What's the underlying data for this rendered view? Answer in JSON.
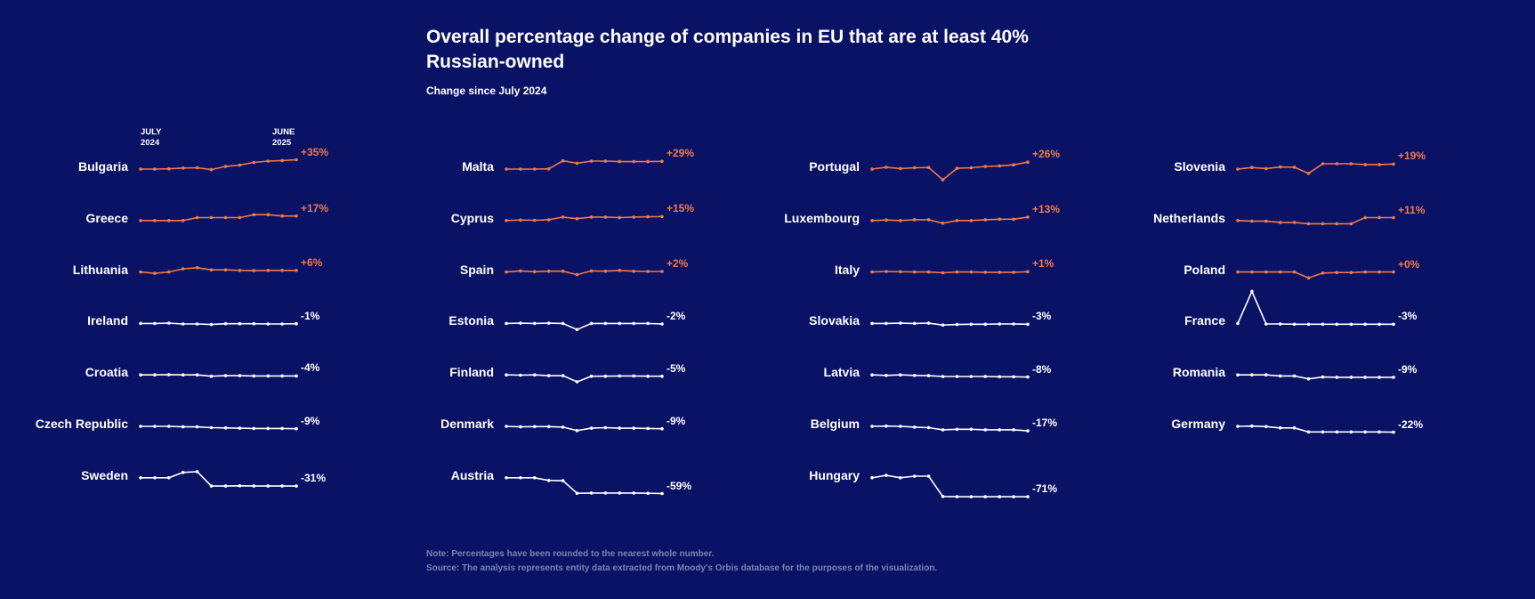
{
  "title": "Overall percentage change of companies in EU that are at least 40% Russian-owned",
  "subtitle": "Change since July 2024",
  "axis": {
    "start": "JULY\n2024",
    "end": "JUNE\n2025"
  },
  "notes": {
    "note": "Note: Percentages have been rounded to the nearest whole number.",
    "source": "Source: The analysis represents entity data extracted from Moody's Orbis database for the purposes of the visualization."
  },
  "colors": {
    "background": "#0a1266",
    "positive": "#f0794a",
    "negative": "#ffffff",
    "muted": "#7a82ad"
  },
  "chart_data": {
    "type": "line",
    "x": [
      "Jul 2024",
      "Aug 2024",
      "Sep 2024",
      "Oct 2024",
      "Nov 2024",
      "Dec 2024",
      "Jan 2025",
      "Feb 2025",
      "Mar 2025",
      "Apr 2025",
      "May 2025",
      "Jun 2025"
    ],
    "series": [
      {
        "name": "Bulgaria",
        "label": "+35%",
        "values": [
          100,
          100,
          101,
          104,
          105,
          98,
          110,
          115,
          125,
          130,
          132,
          135
        ]
      },
      {
        "name": "Greece",
        "label": "+17%",
        "values": [
          100,
          100,
          100,
          100,
          111,
          111,
          111,
          111,
          122,
          122,
          117,
          117
        ]
      },
      {
        "name": "Lithuania",
        "label": "+6%",
        "values": [
          100,
          95,
          100,
          112,
          116,
          108,
          108,
          106,
          105,
          106,
          106,
          106
        ]
      },
      {
        "name": "Ireland",
        "label": "-1%",
        "values": [
          100,
          100,
          101,
          98,
          98,
          96,
          99,
          99,
          99,
          98,
          98,
          99
        ]
      },
      {
        "name": "Croatia",
        "label": "-4%",
        "values": [
          100,
          100,
          101,
          100,
          100,
          95,
          97,
          97,
          96,
          96,
          96,
          96
        ]
      },
      {
        "name": "Czech Republic",
        "label": "-9%",
        "values": [
          100,
          100,
          100,
          98,
          98,
          95,
          94,
          93,
          92,
          92,
          92,
          91
        ]
      },
      {
        "name": "Sweden",
        "label": "-31%",
        "values": [
          100,
          100,
          100,
          120,
          123,
          69,
          69,
          70,
          69,
          69,
          69,
          69
        ]
      },
      {
        "name": "Malta",
        "label": "+29%",
        "values": [
          100,
          100,
          100,
          101,
          131,
          122,
          130,
          130,
          128,
          128,
          128,
          129
        ]
      },
      {
        "name": "Cyprus",
        "label": "+15%",
        "values": [
          100,
          102,
          101,
          103,
          113,
          107,
          113,
          113,
          111,
          113,
          114,
          115
        ]
      },
      {
        "name": "Spain",
        "label": "+2%",
        "values": [
          100,
          104,
          101,
          103,
          103,
          90,
          104,
          103,
          106,
          103,
          102,
          102
        ]
      },
      {
        "name": "Estonia",
        "label": "-2%",
        "values": [
          100,
          101,
          100,
          101,
          100,
          77,
          100,
          100,
          100,
          100,
          100,
          98
        ]
      },
      {
        "name": "Finland",
        "label": "-5%",
        "values": [
          100,
          99,
          100,
          97,
          97,
          74,
          95,
          95,
          96,
          96,
          95,
          95
        ]
      },
      {
        "name": "Denmark",
        "label": "-9%",
        "values": [
          100,
          98,
          99,
          99,
          97,
          84,
          93,
          95,
          93,
          93,
          92,
          91
        ]
      },
      {
        "name": "Austria",
        "label": "-59%",
        "values": [
          100,
          100,
          100,
          90,
          89,
          42,
          43,
          43,
          43,
          43,
          42,
          41
        ]
      },
      {
        "name": "Portugal",
        "label": "+26%",
        "values": [
          100,
          107,
          102,
          105,
          106,
          60,
          103,
          105,
          110,
          112,
          116,
          126
        ]
      },
      {
        "name": "Luxembourg",
        "label": "+13%",
        "values": [
          100,
          102,
          100,
          103,
          103,
          90,
          100,
          100,
          103,
          105,
          105,
          113
        ]
      },
      {
        "name": "Italy",
        "label": "+1%",
        "values": [
          100,
          102,
          101,
          100,
          100,
          97,
          100,
          100,
          99,
          99,
          99,
          101
        ]
      },
      {
        "name": "Slovakia",
        "label": "-3%",
        "values": [
          100,
          100,
          101,
          100,
          101,
          94,
          96,
          97,
          97,
          98,
          98,
          97
        ]
      },
      {
        "name": "Latvia",
        "label": "-8%",
        "values": [
          100,
          98,
          100,
          98,
          97,
          94,
          94,
          94,
          94,
          93,
          93,
          92
        ]
      },
      {
        "name": "Belgium",
        "label": "-17%",
        "values": [
          100,
          101,
          100,
          97,
          95,
          87,
          89,
          89,
          87,
          87,
          87,
          83
        ]
      },
      {
        "name": "Hungary",
        "label": "-71%",
        "values": [
          100,
          109,
          100,
          106,
          106,
          30,
          29,
          29,
          29,
          29,
          29,
          29
        ]
      },
      {
        "name": "Slovenia",
        "label": "+19%",
        "values": [
          100,
          106,
          102,
          108,
          107,
          84,
          120,
          120,
          120,
          117,
          117,
          119
        ]
      },
      {
        "name": "Netherlands",
        "label": "+11%",
        "values": [
          100,
          98,
          98,
          93,
          93,
          88,
          88,
          88,
          88,
          111,
          111,
          111
        ]
      },
      {
        "name": "Poland",
        "label": "+0%",
        "values": [
          100,
          100,
          100,
          100,
          100,
          78,
          96,
          98,
          98,
          100,
          100,
          100
        ]
      },
      {
        "name": "France",
        "label": "-3%",
        "values": [
          100,
          220,
          98,
          98,
          97,
          97,
          97,
          97,
          97,
          97,
          97,
          97
        ]
      },
      {
        "name": "Romania",
        "label": "-9%",
        "values": [
          100,
          100,
          100,
          96,
          96,
          85,
          92,
          91,
          91,
          91,
          91,
          91
        ]
      },
      {
        "name": "Germany",
        "label": "-22%",
        "values": [
          100,
          101,
          99,
          94,
          94,
          79,
          79,
          79,
          79,
          79,
          79,
          78
        ]
      }
    ]
  }
}
